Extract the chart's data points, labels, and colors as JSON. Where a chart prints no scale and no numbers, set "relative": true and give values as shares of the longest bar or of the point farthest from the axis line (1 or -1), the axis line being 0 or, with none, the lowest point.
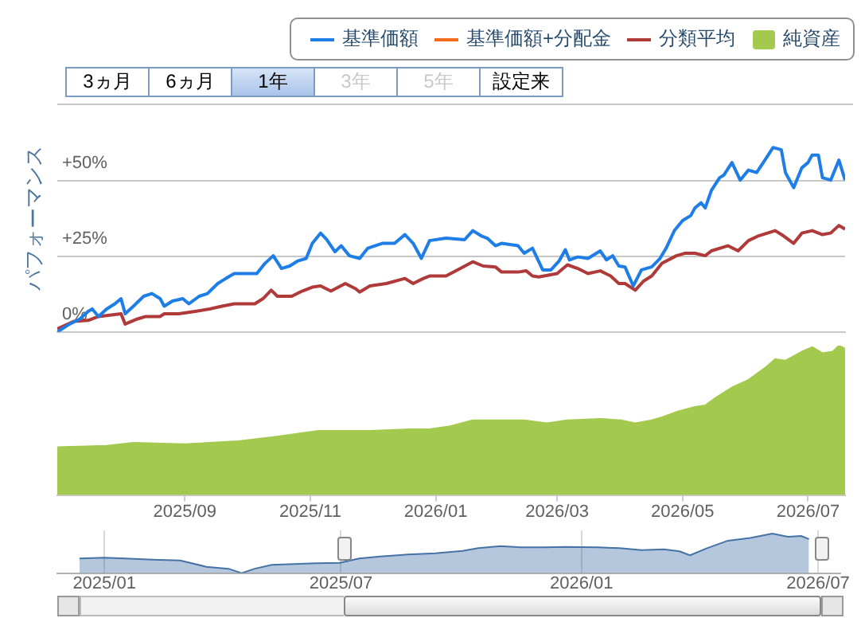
{
  "chart_data": [
    {
      "type": "line",
      "ylabel": "パフォーマンス",
      "annotations": [
        "3ヵ月",
        "6ヵ月",
        "1年",
        "3年",
        "5年",
        "設定来"
      ],
      "x": [
        "2025-07-01",
        "2025-07-07",
        "2025-07-12",
        "2025-07-16",
        "2025-07-18",
        "2025-07-21",
        "2025-07-25",
        "2025-07-29",
        "2025-08-01",
        "2025-08-03",
        "2025-08-07",
        "2025-08-12",
        "2025-08-16",
        "2025-08-20",
        "2025-08-22",
        "2025-08-26",
        "2025-08-31",
        "2025-09-03",
        "2025-09-08",
        "2025-09-12",
        "2025-09-17",
        "2025-09-21",
        "2025-09-25",
        "2025-10-02",
        "2025-10-06",
        "2025-10-10",
        "2025-10-14",
        "2025-10-18",
        "2025-10-22",
        "2025-10-26",
        "2025-10-30",
        "2025-11-02",
        "2025-11-06",
        "2025-11-09",
        "2025-11-13",
        "2025-11-16",
        "2025-11-20",
        "2025-11-25",
        "2025-11-29",
        "2025-12-06",
        "2025-12-12",
        "2025-12-17",
        "2025-12-21",
        "2025-12-25",
        "2025-12-29",
        "2026-01-06",
        "2026-01-15",
        "2026-01-19",
        "2026-01-23",
        "2026-01-26",
        "2026-01-30",
        "2026-02-02",
        "2026-02-10",
        "2026-02-13",
        "2026-02-17",
        "2026-02-22",
        "2026-02-26",
        "2026-03-02",
        "2026-03-05",
        "2026-03-07",
        "2026-03-11",
        "2026-03-16",
        "2026-03-22",
        "2026-03-25",
        "2026-03-28",
        "2026-03-31",
        "2026-04-03",
        "2026-04-07",
        "2026-04-11",
        "2026-04-16",
        "2026-04-20",
        "2026-04-23",
        "2026-04-27",
        "2026-05-01",
        "2026-05-05",
        "2026-05-07",
        "2026-05-10",
        "2026-05-12",
        "2026-05-15",
        "2026-05-19",
        "2026-05-21",
        "2026-05-25",
        "2026-05-29",
        "2026-06-02",
        "2026-06-06",
        "2026-06-10",
        "2026-06-14",
        "2026-06-18",
        "2026-06-20",
        "2026-06-24",
        "2026-06-28",
        "2026-07-01",
        "2026-07-03",
        "2026-07-06",
        "2026-07-08",
        "2026-07-12",
        "2026-07-16",
        "2026-07-19"
      ],
      "series": [
        {
          "name": "基準価額",
          "color": "#1f7ee6",
          "values": [
            0,
            2.6,
            4.3,
            6.8,
            7.6,
            5.1,
            7.6,
            9.3,
            11,
            6,
            8.5,
            11.8,
            12.7,
            11,
            8.5,
            10.2,
            11,
            9.3,
            11.8,
            12.7,
            16,
            17.7,
            19.3,
            19.3,
            19.3,
            22.7,
            25.2,
            21,
            21.8,
            23.5,
            24.3,
            29.3,
            32.7,
            30.5,
            26.5,
            28.5,
            25.2,
            24.3,
            27.7,
            29.3,
            29.3,
            32.2,
            29.3,
            24.3,
            30.2,
            31,
            30.5,
            33.5,
            31.8,
            31,
            28.5,
            29.3,
            28.5,
            26,
            27.7,
            20.5,
            20.5,
            23.5,
            27.2,
            23.8,
            24.8,
            24.3,
            26.8,
            23.8,
            25.2,
            21.8,
            21.5,
            15.2,
            20.5,
            21.5,
            24.3,
            27.7,
            33.5,
            36.8,
            38.5,
            41,
            42.7,
            41,
            46.8,
            51,
            51.8,
            56,
            50.2,
            53.5,
            52.7,
            56.8,
            61,
            60.2,
            52.7,
            47.7,
            54.3,
            56,
            58.5,
            58.5,
            51,
            50.2,
            56.8,
            50.2
          ]
        },
        {
          "name": "基準価額+分配金",
          "color": "#f26a1b",
          "values": [
            null,
            null,
            null,
            null,
            null,
            null,
            null,
            null,
            null,
            null,
            null,
            null,
            null,
            null,
            null,
            null,
            null,
            null,
            null,
            null,
            null,
            null,
            null,
            null,
            null,
            null,
            null,
            null,
            null,
            null,
            null,
            null,
            null,
            null,
            null,
            null,
            null,
            null,
            null,
            null,
            null,
            null,
            null,
            null,
            null,
            null,
            null,
            null,
            null,
            null,
            null,
            null,
            null,
            null,
            null,
            null,
            null,
            null,
            null,
            null,
            null,
            null,
            null,
            null,
            null,
            null,
            null,
            null,
            null,
            null,
            null,
            null,
            null,
            null,
            null,
            null,
            null,
            null,
            null,
            null,
            null,
            null,
            null,
            null,
            null,
            null,
            null,
            null,
            null,
            null,
            null,
            null,
            null,
            null,
            null,
            null,
            null,
            null
          ]
        },
        {
          "name": "分類平均",
          "color": "#b03a3a",
          "x": [
            "2025-07-01",
            "2025-07-09",
            "2025-07-16",
            "2025-07-21",
            "2025-08-01",
            "2025-08-03",
            "2025-08-09",
            "2025-08-13",
            "2025-08-20",
            "2025-08-22",
            "2025-08-29",
            "2025-09-06",
            "2025-09-13",
            "2025-09-19",
            "2025-09-25",
            "2025-10-05",
            "2025-10-09",
            "2025-10-13",
            "2025-10-16",
            "2025-10-23",
            "2025-10-28",
            "2025-11-02",
            "2025-11-06",
            "2025-11-11",
            "2025-11-18",
            "2025-11-23",
            "2025-11-25",
            "2025-11-30",
            "2025-12-08",
            "2025-12-17",
            "2025-12-21",
            "2025-12-26",
            "2025-12-29",
            "2026-01-06",
            "2026-01-13",
            "2026-01-19",
            "2026-01-24",
            "2026-01-30",
            "2026-02-02",
            "2026-02-10",
            "2026-02-14",
            "2026-02-17",
            "2026-02-20",
            "2026-03-01",
            "2026-03-06",
            "2026-03-11",
            "2026-03-16",
            "2026-03-22",
            "2026-03-27",
            "2026-03-31",
            "2026-04-03",
            "2026-04-08",
            "2026-04-12",
            "2026-04-16",
            "2026-04-21",
            "2026-04-28",
            "2026-05-02",
            "2026-05-07",
            "2026-05-12",
            "2026-05-15",
            "2026-05-23",
            "2026-05-28",
            "2026-06-02",
            "2026-06-07",
            "2026-06-15",
            "2026-06-19",
            "2026-06-24",
            "2026-06-28",
            "2026-07-03",
            "2026-07-08",
            "2026-07-12",
            "2026-07-16",
            "2026-07-19"
          ],
          "values": [
            1,
            3.5,
            3.8,
            5.1,
            6,
            2.6,
            4.3,
            5.1,
            5.1,
            6,
            6,
            6.8,
            7.6,
            8.5,
            9.3,
            9.3,
            11,
            13.8,
            11.8,
            11.8,
            13.5,
            14.8,
            15.2,
            13.5,
            16,
            14.3,
            13.2,
            15.2,
            16,
            17.7,
            16,
            17.7,
            18.5,
            18.5,
            21,
            23.2,
            21.8,
            21.5,
            19.8,
            19.8,
            20.2,
            18.5,
            18.2,
            19.3,
            22.2,
            21,
            19.3,
            20.2,
            18.5,
            16,
            16,
            13.8,
            16.8,
            18.5,
            22.7,
            25.2,
            26,
            26,
            25.2,
            26.8,
            28.5,
            26.8,
            30.2,
            31.8,
            33.5,
            31.8,
            29.3,
            32.7,
            33.5,
            32.2,
            32.7,
            35.2,
            34
          ]
        }
      ],
      "xlim": [
        "2025-07-01",
        "2026-07-19"
      ],
      "tick_labels": "y",
      "ylim": [
        0,
        75
      ],
      "yticks": [
        {
          "value": 0,
          "label": "0%"
        },
        {
          "value": 25,
          "label": "+25%"
        },
        {
          "value": 50,
          "label": "+50%"
        }
      ],
      "grid": "y",
      "legend": "top right"
    },
    {
      "type": "area",
      "relative": true,
      "legend": "top right",
      "xticks": [
        {
          "value": "2025-09-01",
          "label": "2025/09"
        },
        {
          "value": "2025-11-01",
          "label": "2025/11"
        },
        {
          "value": "2026-01-01",
          "label": "2026/01"
        },
        {
          "value": "2026-03-01",
          "label": "2026/03"
        },
        {
          "value": "2026-05-01",
          "label": "2026/05"
        },
        {
          "value": "2026-07-01",
          "label": "2026/07"
        }
      ],
      "series": [
        {
          "name": "純資産",
          "color": "#a3c94e",
          "x": [
            "2025-07-01",
            "2025-07-25",
            "2025-08-07",
            "2025-09-01",
            "2025-09-27",
            "2025-10-15",
            "2025-11-05",
            "2025-11-30",
            "2025-12-19",
            "2025-12-29",
            "2026-01-08",
            "2026-01-19",
            "2026-01-30",
            "2026-02-13",
            "2026-02-24",
            "2026-03-06",
            "2026-03-22",
            "2026-04-01",
            "2026-04-08",
            "2026-04-16",
            "2026-04-21",
            "2026-04-29",
            "2026-05-07",
            "2026-05-12",
            "2026-05-17",
            "2026-05-25",
            "2026-06-02",
            "2026-06-10",
            "2026-06-15",
            "2026-06-20",
            "2026-06-28",
            "2026-07-03",
            "2026-07-08",
            "2026-07-13",
            "2026-07-16",
            "2026-07-19"
          ],
          "values": [
            0.32,
            0.33,
            0.35,
            0.34,
            0.36,
            0.39,
            0.43,
            0.43,
            0.44,
            0.44,
            0.46,
            0.5,
            0.5,
            0.5,
            0.48,
            0.5,
            0.51,
            0.5,
            0.48,
            0.5,
            0.52,
            0.56,
            0.59,
            0.6,
            0.65,
            0.72,
            0.77,
            0.85,
            0.91,
            0.9,
            0.96,
            0.99,
            0.95,
            0.96,
            1,
            0.98
          ]
        }
      ],
      "xlim": [
        "2025-07-01",
        "2026-07-19"
      ]
    },
    {
      "type": "area",
      "relative": true,
      "color": "#4572a7",
      "x": [
        "2024-12-13",
        "2025-01-01",
        "2025-01-17",
        "2025-02-07",
        "2025-02-28",
        "2025-03-20",
        "2025-04-06",
        "2025-04-16",
        "2025-04-26",
        "2025-05-09",
        "2025-05-26",
        "2025-06-12",
        "2025-06-30",
        "2025-07-15",
        "2025-07-31",
        "2025-08-21",
        "2025-09-11",
        "2025-10-02",
        "2025-10-14",
        "2025-10-31",
        "2025-11-16",
        "2025-12-03",
        "2025-12-20",
        "2026-01-14",
        "2026-01-30",
        "2026-02-16",
        "2026-03-05",
        "2026-03-17",
        "2026-03-25",
        "2026-04-07",
        "2026-04-23",
        "2026-05-10",
        "2026-05-27",
        "2026-06-08",
        "2026-06-18",
        "2026-06-24"
      ],
      "values": [
        0.37,
        0.39,
        0.37,
        0.34,
        0.32,
        0.16,
        0.11,
        0,
        0.11,
        0.21,
        0.23,
        0.25,
        0.26,
        0.37,
        0.42,
        0.47,
        0.5,
        0.56,
        0.63,
        0.68,
        0.65,
        0.65,
        0.66,
        0.65,
        0.63,
        0.58,
        0.6,
        0.55,
        0.45,
        0.63,
        0.82,
        0.89,
        1,
        0.92,
        0.94,
        0.86
      ],
      "xlim": [
        "2024-11-26",
        "2026-07-18"
      ],
      "xticks": [
        {
          "value": "2025-01-01",
          "label": "2025/01"
        },
        {
          "value": "2025-07-01",
          "label": "2025/07"
        },
        {
          "value": "2026-01-01",
          "label": "2026/01"
        },
        {
          "value": "2026-07-01",
          "label": "2026/07"
        }
      ],
      "grid": "x"
    }
  ]
}
